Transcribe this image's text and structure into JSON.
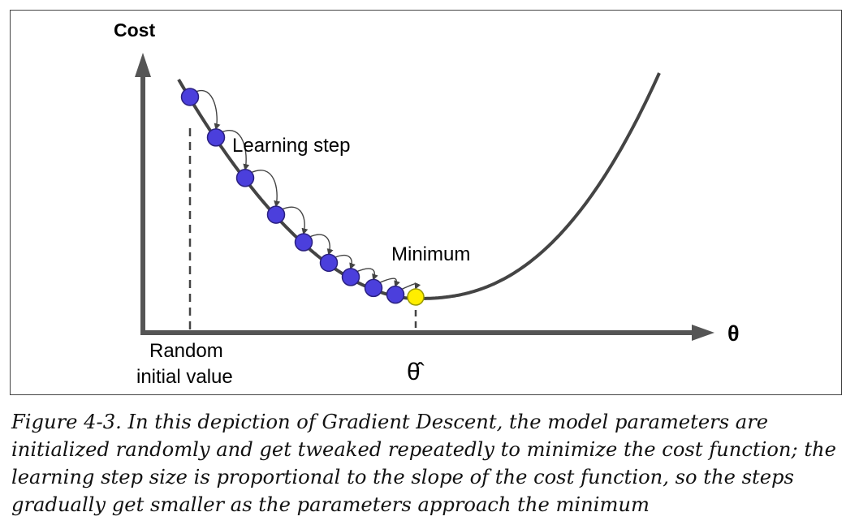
{
  "diagram": {
    "y_axis_label": "Cost",
    "x_axis_label": "θ",
    "annotations": {
      "learning_step": "Learning step",
      "minimum": "Minimum",
      "random_line1": "Random",
      "random_line2": "initial value",
      "theta_hat": "θ̂"
    },
    "colors": {
      "curve": "#444444",
      "axis": "#555555",
      "step_point": "#4b3fdc",
      "minimum_point": "#ffee00"
    },
    "step_count": 10
  },
  "caption": "Figure 4-3. In this depiction of Gradient Descent, the model parameters are initialized randomly and get tweaked repeatedly to minimize the cost function; the learning step size is proportional to the slope of the cost function, so the steps gradually get smaller as the parameters approach the minimum"
}
